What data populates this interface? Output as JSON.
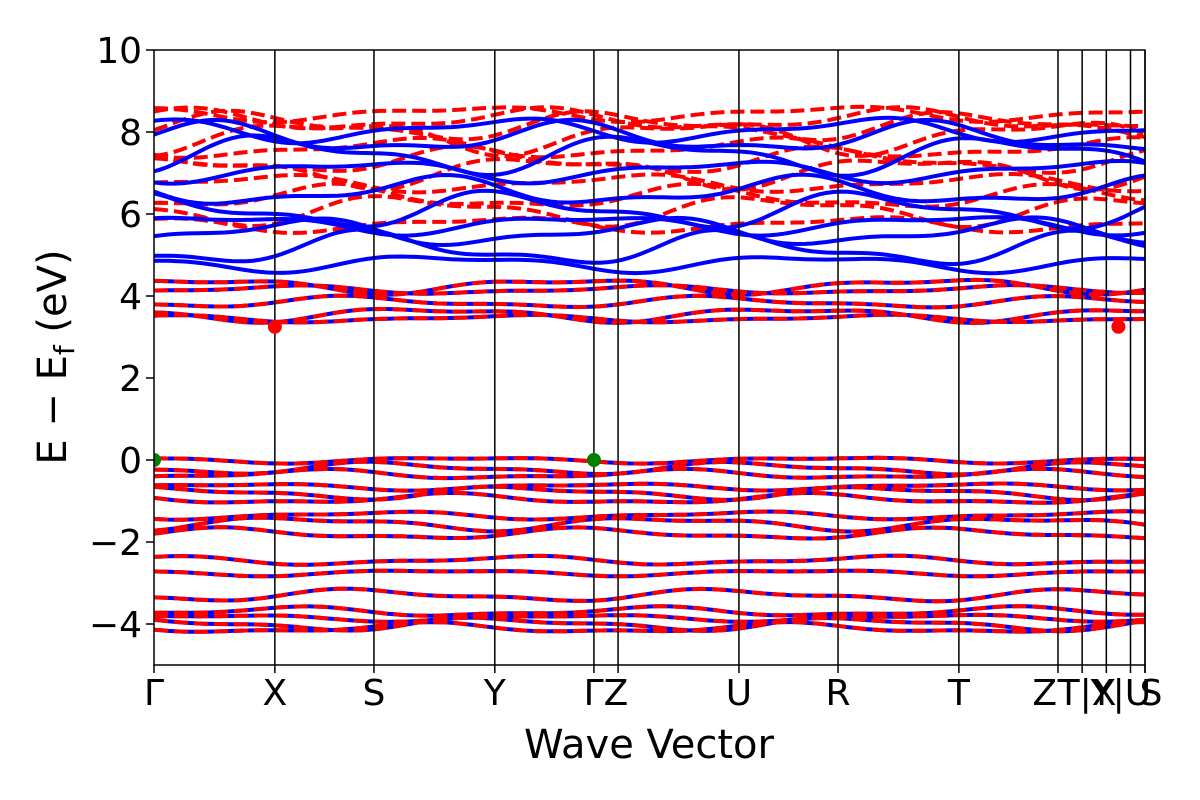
{
  "chart_data": {
    "type": "line",
    "title": "",
    "xlabel": "Wave Vector",
    "ylabel": {
      "main": "E − E",
      "subscript": "f",
      "unit": "(eV)"
    },
    "ylim": [
      -5,
      10
    ],
    "yticks": [
      -4,
      -2,
      0,
      2,
      4,
      6,
      8,
      10
    ],
    "ytick_labels": [
      "−4",
      "−2",
      "0",
      "2",
      "4",
      "6",
      "8",
      "10"
    ],
    "grid": false,
    "legend": "none",
    "kpath": {
      "labels": [
        "Γ",
        "X",
        "S",
        "Y",
        "Γ",
        "Z",
        "U",
        "R",
        "T",
        "Z",
        "T",
        "X",
        "Y",
        "U",
        "S"
      ],
      "positions": [
        0,
        1.0,
        1.82,
        2.82,
        3.64,
        3.84,
        4.84,
        5.66,
        6.66,
        7.48,
        7.68,
        7.88,
        8.08,
        8.2,
        8.2
      ],
      "tick_labels": [
        {
          "text": "Γ",
          "x": 0
        },
        {
          "text": "X",
          "x": 1.0
        },
        {
          "text": "S",
          "x": 1.82
        },
        {
          "text": "Y",
          "x": 2.82
        },
        {
          "text": "ΓZ",
          "x": 3.74
        },
        {
          "text": "U",
          "x": 4.84
        },
        {
          "text": "R",
          "x": 5.66
        },
        {
          "text": "T",
          "x": 6.66
        },
        {
          "text": "Z",
          "x": 7.37
        },
        {
          "text": "T|X",
          "x": 7.72
        },
        {
          "text": "Y|U",
          "x": 8.0
        },
        {
          "text": "S",
          "x": 8.25
        }
      ],
      "vlines": [
        1.0,
        1.82,
        2.82,
        3.64,
        3.84,
        4.84,
        5.66,
        6.66,
        7.48,
        7.68,
        7.88,
        8.08,
        8.2
      ]
    },
    "series": [
      {
        "style": "spin-down dashed",
        "color": "#ff0000"
      },
      {
        "style": "spin-up solid",
        "color": "#0000ff"
      }
    ],
    "bands": {
      "conduction_up": [
        4.8,
        5.15,
        5.55,
        5.75,
        6.1,
        6.55,
        7.05,
        7.45,
        7.85,
        8.05
      ],
      "conduction_down": [
        5.75,
        6.1,
        6.4,
        6.75,
        7.05,
        7.3,
        7.6,
        7.9,
        8.15,
        8.3,
        8.45
      ],
      "mid": [
        3.45,
        3.55,
        3.85,
        4.15,
        4.25
      ],
      "valence": [
        0.0,
        -0.2,
        -0.35,
        -0.65,
        -0.8,
        -0.95,
        -1.35,
        -1.55,
        -1.8,
        -2.45,
        -2.75,
        -3.3,
        -3.7,
        -3.85,
        -4.0,
        -4.1
      ]
    },
    "markers": [
      {
        "name": "VBM",
        "x": 0,
        "y": 0.0,
        "color": "#008000"
      },
      {
        "name": "VBM",
        "x": 3.64,
        "y": 0.0,
        "color": "#008000"
      },
      {
        "name": "CBM",
        "x": 1.0,
        "y": 3.25,
        "color": "#ff0000"
      },
      {
        "name": "CBM",
        "x": 7.98,
        "y": 3.25,
        "color": "#ff0000"
      }
    ]
  }
}
